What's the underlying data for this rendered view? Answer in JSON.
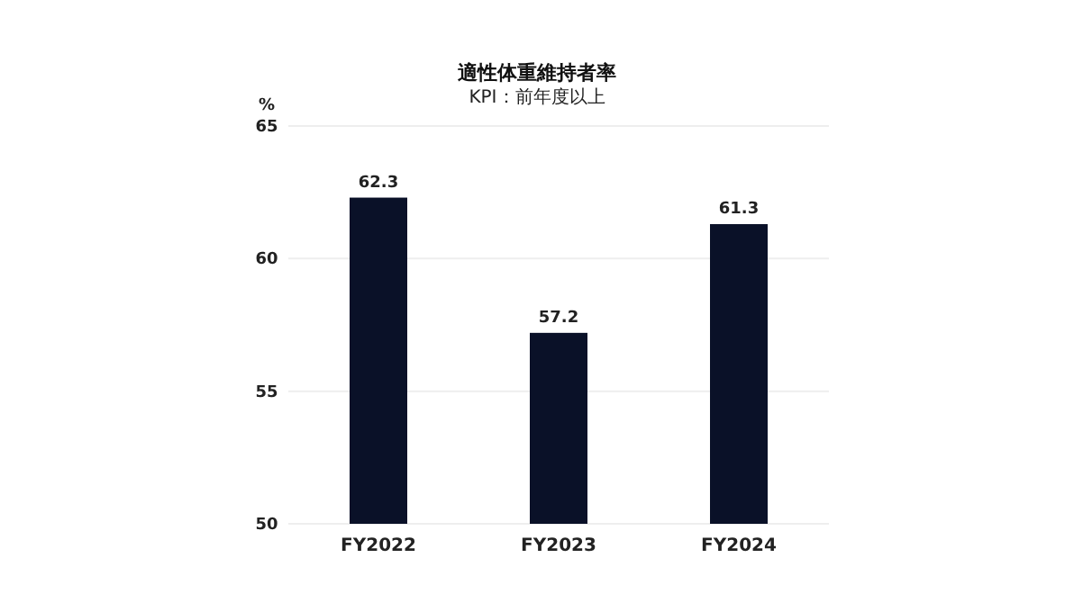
{
  "chart_data": {
    "type": "bar",
    "title": "適性体重維持者率",
    "subtitle": "KPI：前年度以上",
    "ylabel": "%",
    "categories": [
      "FY2022",
      "FY2023",
      "FY2024"
    ],
    "values": [
      62.3,
      57.2,
      61.3
    ],
    "color": "#0a1128",
    "ylim": [
      50,
      65
    ],
    "yticks": [
      50,
      55,
      60,
      65
    ],
    "grid": "y",
    "data_labels": true
  }
}
